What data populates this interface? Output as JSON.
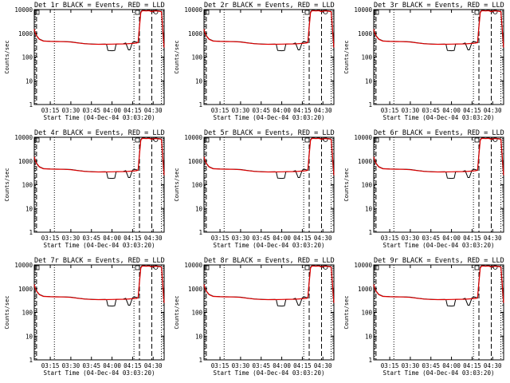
{
  "chart_data": {
    "type": "line",
    "layout": {
      "rows": 3,
      "cols": 3
    },
    "y_scale": "log",
    "ylim": [
      1,
      10000
    ],
    "ylabel": "Counts/sec",
    "y_ticks": [
      {
        "value": 1,
        "label": "1"
      },
      {
        "value": 10,
        "label": "10"
      },
      {
        "value": 100,
        "label": "100"
      },
      {
        "value": 1000,
        "label": "1000"
      },
      {
        "value": 10000,
        "label": "10000"
      }
    ],
    "xlim": [
      "03:03:20",
      "04:38:00"
    ],
    "xlabel": "Start Time (04-Dec-04 03:03:20)",
    "x_ticks": [
      {
        "value": "03:15",
        "label": "03:15"
      },
      {
        "value": "03:30",
        "label": "03:30"
      },
      {
        "value": "03:45",
        "label": "03:45"
      },
      {
        "value": "04:00",
        "label": "04:00"
      },
      {
        "value": "04:15",
        "label": "04:15"
      },
      {
        "value": "04:30",
        "label": "04:30"
      }
    ],
    "dotted_lines_x": [
      "03:04:00",
      "03:18:00",
      "04:16:00",
      "04:36:00"
    ],
    "dashed_lines_x": [
      "03:05:00",
      "04:20:00",
      "04:29:00"
    ],
    "colors": {
      "events": "#000000",
      "lld": "#e00000"
    },
    "series_style": [
      {
        "name": "Events",
        "color": "#000000"
      },
      {
        "name": "LLD",
        "color": "#e00000"
      }
    ],
    "curve_events": {
      "x": [
        "03:03:20",
        "03:04:00",
        "03:05:00",
        "03:07:00",
        "03:10:00",
        "03:15:00",
        "03:20:00",
        "03:25:00",
        "03:30:00",
        "03:35:00",
        "03:40:00",
        "03:45:00",
        "03:50:00",
        "03:55:00",
        "03:56:00",
        "03:57:00",
        "04:00:00",
        "04:02:00",
        "04:03:00",
        "04:05:00",
        "04:08:00",
        "04:10:00",
        "04:12:00",
        "04:13:00",
        "04:15:00",
        "04:17:00",
        "04:18:00",
        "04:19:00",
        "04:20:00",
        "04:21:00",
        "04:22:00",
        "04:25:00",
        "04:27:00",
        "04:29:00",
        "04:30:00",
        "04:33:00",
        "04:36:00",
        "04:37:00",
        "04:38:00"
      ],
      "y": [
        1500,
        1100,
        800,
        580,
        480,
        460,
        455,
        450,
        440,
        400,
        370,
        355,
        345,
        350,
        340,
        190,
        185,
        190,
        350,
        360,
        360,
        390,
        200,
        200,
        420,
        450,
        420,
        400,
        2200,
        8000,
        9500,
        9000,
        9500,
        8500,
        9000,
        9000,
        8500,
        1200,
        200
      ]
    },
    "curve_lld": {
      "x": [
        "03:03:20",
        "03:04:00",
        "03:05:00",
        "03:07:00",
        "03:10:00",
        "03:15:00",
        "03:20:00",
        "03:25:00",
        "03:30:00",
        "03:35:00",
        "03:40:00",
        "03:45:00",
        "03:50:00",
        "03:55:00",
        "04:00:00",
        "04:05:00",
        "04:10:00",
        "04:15:00",
        "04:18:00",
        "04:19:00",
        "04:20:00",
        "04:21:00",
        "04:22:00",
        "04:25:00",
        "04:27:00",
        "04:29:00",
        "04:30:00",
        "04:33:00",
        "04:36:00",
        "04:37:00",
        "04:38:00"
      ],
      "y": [
        1500,
        1050,
        780,
        560,
        470,
        455,
        450,
        445,
        430,
        395,
        365,
        350,
        345,
        345,
        350,
        355,
        360,
        375,
        390,
        420,
        1800,
        7500,
        9000,
        8800,
        9000,
        8200,
        8700,
        8800,
        8200,
        1500,
        250
      ]
    },
    "marker_boxes_y": [
      10000,
      10000
    ],
    "panels": [
      {
        "title": "Det 1r BLACK = Events, RED = LLD"
      },
      {
        "title": "Det 2r BLACK = Events, RED = LLD"
      },
      {
        "title": "Det 3r BLACK = Events, RED = LLD"
      },
      {
        "title": "Det 4r BLACK = Events, RED = LLD"
      },
      {
        "title": "Det 5r BLACK = Events, RED = LLD"
      },
      {
        "title": "Det 6r BLACK = Events, RED = LLD"
      },
      {
        "title": "Det 7r BLACK = Events, RED = LLD"
      },
      {
        "title": "Det 8r BLACK = Events, RED = LLD"
      },
      {
        "title": "Det 9r BLACK = Events, RED = LLD"
      }
    ]
  }
}
